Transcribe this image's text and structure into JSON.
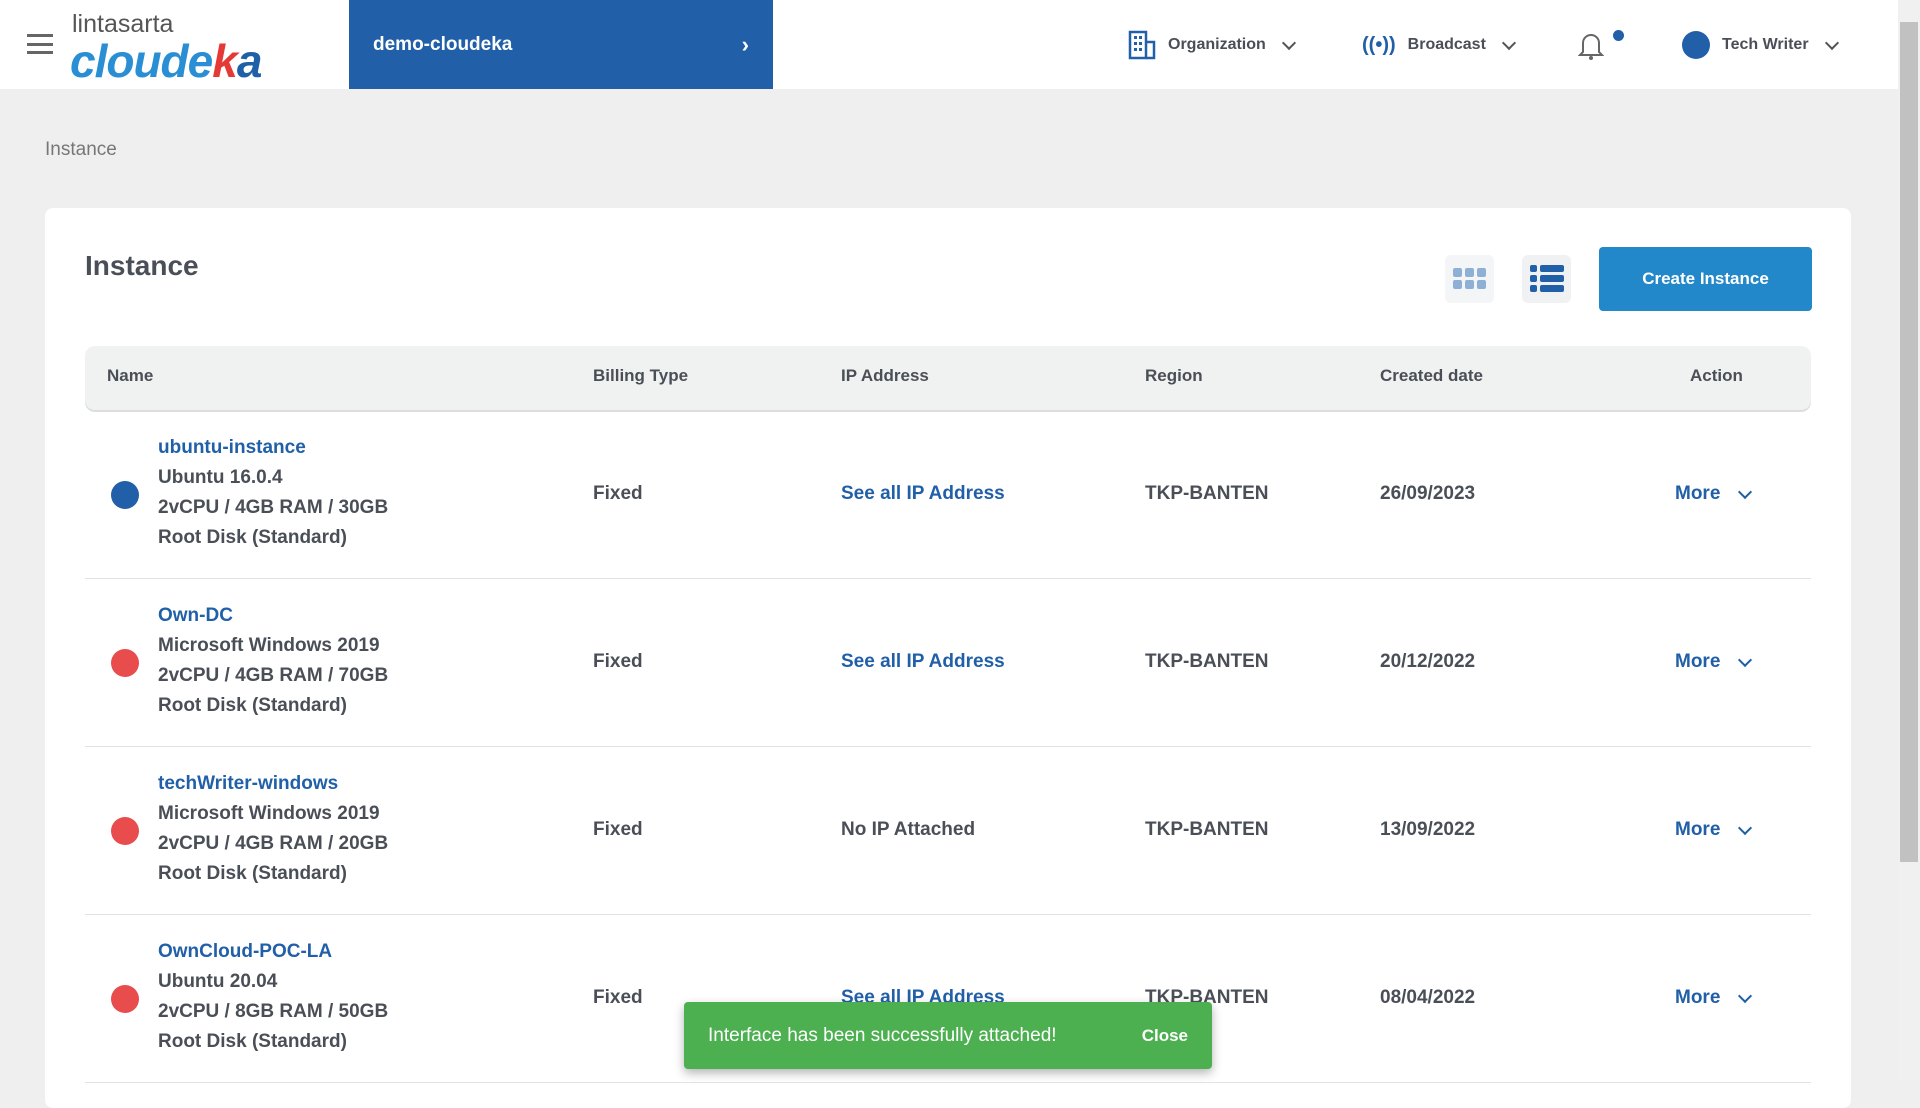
{
  "header": {
    "logo_top": "lintasarta",
    "logo_main_1": "cloude",
    "logo_main_k": "k",
    "logo_main_a": "a",
    "project": "demo-cloudeka",
    "organization": "Organization",
    "broadcast": "Broadcast",
    "user": "Tech Writer",
    "notification_dot": true
  },
  "breadcrumb": "Instance",
  "page": {
    "title": "Instance",
    "create_label": "Create Instance",
    "view_mode": "list"
  },
  "table": {
    "headers": [
      "Name",
      "Billing Type",
      "IP Address",
      "Region",
      "Created date",
      "Action"
    ],
    "rows": [
      {
        "name": "ubuntu-instance",
        "os": "Ubuntu 16.0.4",
        "spec": "2vCPU / 4GB RAM / 30GB",
        "disk": "Root Disk (Standard)",
        "status_color": "#2160a8",
        "billing": "Fixed",
        "ip": "See all IP Address",
        "region": "TKP-BANTEN",
        "created": "26/09/2023",
        "action": "More"
      },
      {
        "name": "Own-DC",
        "os": "Microsoft Windows 2019",
        "spec": "2vCPU / 4GB RAM / 70GB",
        "disk": "Root Disk (Standard)",
        "status_color": "#e84c4c",
        "billing": "Fixed",
        "ip": "See all IP Address",
        "region": "TKP-BANTEN",
        "created": "20/12/2022",
        "action": "More"
      },
      {
        "name": "techWriter-windows",
        "os": "Microsoft Windows 2019",
        "spec": "2vCPU / 4GB RAM / 20GB",
        "disk": "Root Disk (Standard)",
        "status_color": "#e84c4c",
        "billing": "Fixed",
        "ip": "No IP Attached",
        "region": "TKP-BANTEN",
        "created": "13/09/2022",
        "action": "More"
      },
      {
        "name": "OwnCloud-POC-LA",
        "os": "Ubuntu 20.04",
        "spec": "2vCPU / 8GB RAM / 50GB",
        "disk": "Root Disk (Standard)",
        "status_color": "#e84c4c",
        "billing": "Fixed",
        "ip": "See all IP Address",
        "region": "TKP-BANTEN",
        "created": "08/04/2022",
        "action": "More"
      }
    ]
  },
  "toast": {
    "message": "Interface has been successfully attached!",
    "close": "Close",
    "color": "#4caf50"
  }
}
